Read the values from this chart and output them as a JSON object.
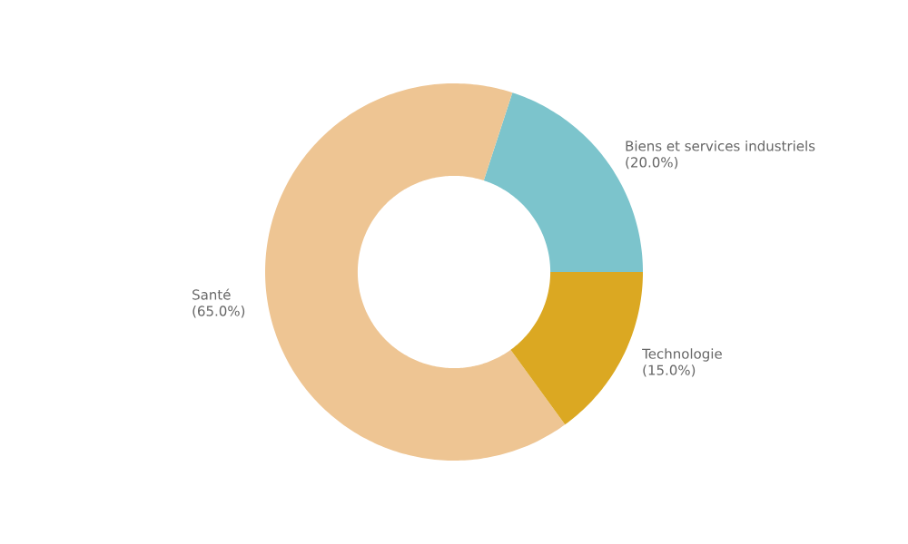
{
  "chart_data": {
    "type": "donut",
    "categories": [
      "Biens et services industriels",
      "Santé",
      "Technologie"
    ],
    "values": [
      20,
      65,
      15
    ],
    "colors": [
      "#7cc4cc",
      "#eec593",
      "#dba822"
    ],
    "value_labels": [
      "(20.0%)",
      "(65.0%)",
      "(15.0%)"
    ]
  }
}
